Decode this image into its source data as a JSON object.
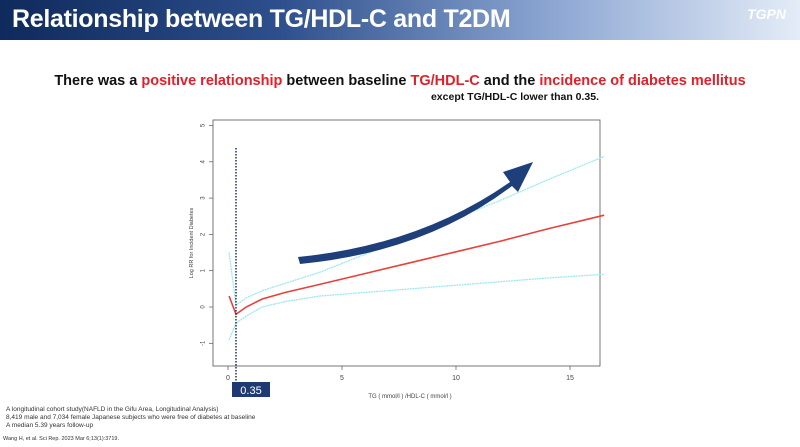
{
  "header": {
    "title": "Relationship between TG/HDL-C and T2DM",
    "logo": "티지페논"
  },
  "headline": {
    "p1": "There was a ",
    "p2": "positive relationship",
    "p3": " between baseline ",
    "p4": "TG/HDL-C",
    "p5": " and the ",
    "p6": "incidence of diabetes mellitus"
  },
  "subheadline": "except TG/HDL-C lower than 0.35.",
  "notes": [
    "A longitudinal cohort study(NAFLD in the Gifu Area, Longitudinal Analysis)",
    "8,419 male and 7,034 female Japanese subjects who were free of diabetes at baseline",
    "A median 5.39 years follow-up"
  ],
  "citation": "Wang H, et al. Sci Rep. 2023 Mar 6;13(1):3719.",
  "chart_data": {
    "type": "line",
    "xlabel": "TG ( mmol/l ) /HDL-C ( mmol/l )",
    "ylabel": "Log RR for Incident Diabetes",
    "xlim": [
      -0.5,
      16.8
    ],
    "ylim": [
      -1.2,
      5.2
    ],
    "xticks": [
      0,
      5,
      10,
      15
    ],
    "yticks": [
      -1,
      0,
      1,
      2,
      3,
      4,
      5
    ],
    "threshold": {
      "x": 0.35,
      "label": "0.35"
    },
    "series": [
      {
        "name": "Log RR",
        "color": "#e8403a",
        "x": [
          0.05,
          0.35,
          0.8,
          1.5,
          2.5,
          4,
          6,
          8,
          10,
          12,
          14,
          16.5
        ],
        "y": [
          0.3,
          -0.2,
          0.0,
          0.22,
          0.4,
          0.62,
          0.92,
          1.22,
          1.52,
          1.82,
          2.15,
          2.53
        ]
      },
      {
        "name": "Upper 95% CI",
        "color": "#9ee8f0",
        "x": [
          0.05,
          0.35,
          0.8,
          1.5,
          2.5,
          4,
          6,
          8,
          10,
          12,
          14,
          16.5
        ],
        "y": [
          1.5,
          0.05,
          0.25,
          0.45,
          0.65,
          0.95,
          1.45,
          1.95,
          2.45,
          2.95,
          3.5,
          4.15
        ]
      },
      {
        "name": "Lower 95% CI",
        "color": "#9ee8f0",
        "x": [
          0.05,
          0.35,
          0.8,
          1.5,
          2.5,
          4,
          6,
          8,
          10,
          12,
          14,
          16.5
        ],
        "y": [
          -0.9,
          -0.45,
          -0.25,
          0.0,
          0.15,
          0.3,
          0.4,
          0.5,
          0.6,
          0.7,
          0.8,
          0.9
        ]
      }
    ]
  }
}
